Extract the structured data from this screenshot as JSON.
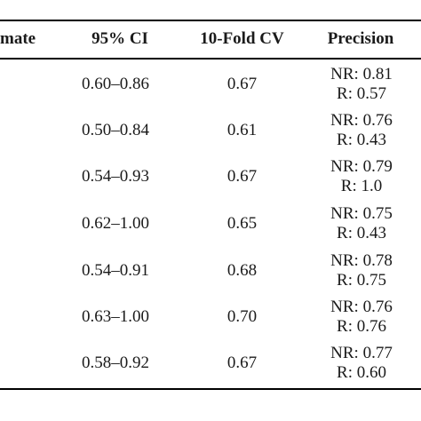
{
  "header": {
    "col0": "mate",
    "col1": "95% CI",
    "col2": "10-Fold CV",
    "col3": "Precision"
  },
  "rows": [
    {
      "ci": "0.60–0.86",
      "cv": "0.67",
      "nr": "NR: 0.81",
      "r": "R: 0.57"
    },
    {
      "ci": "0.50–0.84",
      "cv": "0.61",
      "nr": "NR: 0.76",
      "r": "R: 0.43"
    },
    {
      "ci": "0.54–0.93",
      "cv": "0.67",
      "nr": "NR: 0.79",
      "r": "R: 1.0"
    },
    {
      "ci": "0.62–1.00",
      "cv": "0.65",
      "nr": "NR: 0.75",
      "r": "R: 0.43"
    },
    {
      "ci": "0.54–0.91",
      "cv": "0.68",
      "nr": "NR: 0.78",
      "r": "R: 0.75"
    },
    {
      "ci": "0.63–1.00",
      "cv": "0.70",
      "nr": "NR: 0.76",
      "r": "R: 0.76"
    },
    {
      "ci": "0.58–0.92",
      "cv": "0.67",
      "nr": "NR: 0.77",
      "r": "R: 0.60"
    }
  ]
}
